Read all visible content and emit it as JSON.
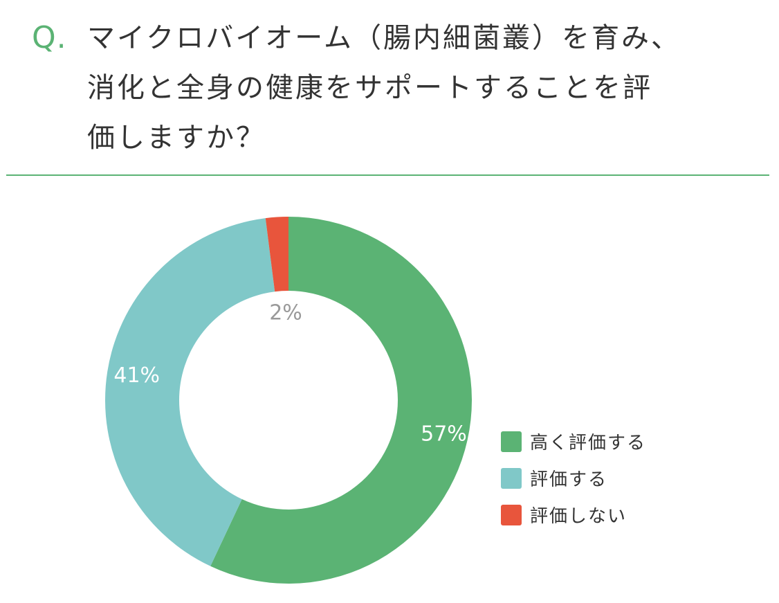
{
  "question": {
    "prefix": "Q.",
    "lines": [
      "マイクロバイオーム（腸内細菌叢）を育み、",
      "消化と全身の健康をサポートすることを評",
      "価しますか？"
    ]
  },
  "colors": {
    "accent": "#5bb374",
    "series": [
      "#5bb374",
      "#80c8c8",
      "#e8553c"
    ]
  },
  "chart_data": {
    "type": "pie",
    "donut": true,
    "title": "",
    "categories": [
      "高く評価する",
      "評価する",
      "評価しない"
    ],
    "values": [
      57,
      41,
      2
    ],
    "labels": [
      "57%",
      "41%",
      "2%"
    ],
    "legend_position": "right"
  }
}
